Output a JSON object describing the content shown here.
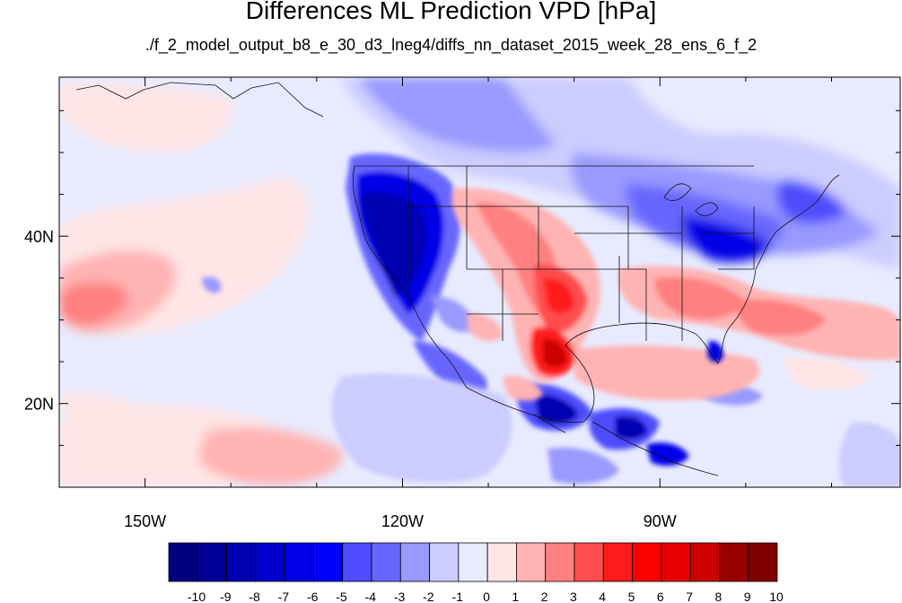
{
  "title": "Differences ML Prediction VPD [hPa]",
  "subtitle": "./f_2_model_output_b8_e_30_d3_lneg4/diffs_nn_dataset_2015_week_28_ens_6_f_2",
  "map": {
    "lon_range": [
      -160,
      -62
    ],
    "lat_range": [
      10,
      59
    ],
    "lon_ticks": [
      {
        "value": -150,
        "label": "150W"
      },
      {
        "value": -120,
        "label": "120W"
      },
      {
        "value": -90,
        "label": "90W"
      }
    ],
    "lat_ticks": [
      {
        "value": 40,
        "label": "40N"
      },
      {
        "value": 20,
        "label": "20N"
      }
    ],
    "minor_lon_ticks": [
      -160,
      -140,
      -130,
      -110,
      -100,
      -80,
      -70
    ],
    "minor_lat_ticks": [
      15,
      25,
      30,
      35,
      45,
      50,
      55
    ]
  },
  "colorbar": {
    "labels": [
      "-10",
      "-9",
      "-8",
      "-7",
      "-6",
      "-5",
      "-4",
      "-3",
      "-2",
      "-1",
      "0",
      "1",
      "2",
      "3",
      "4",
      "5",
      "6",
      "7",
      "8",
      "9",
      "10"
    ],
    "colors": [
      "#000080",
      "#000099",
      "#0000b3",
      "#0000cc",
      "#0000e6",
      "#0000ff",
      "#4d4dff",
      "#6666ff",
      "#9999ff",
      "#ccccff",
      "#e8ebff",
      "#ffe5e5",
      "#ffb3b3",
      "#ff8080",
      "#ff4d4d",
      "#ff1a1a",
      "#ff0000",
      "#e60000",
      "#cc0000",
      "#990000",
      "#800000"
    ]
  }
}
